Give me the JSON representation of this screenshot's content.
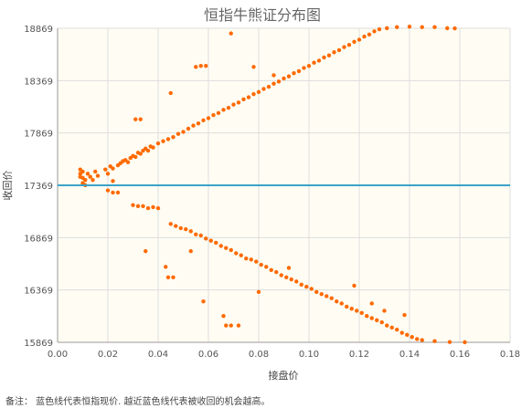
{
  "chart_data": {
    "type": "scatter",
    "title": "恒指牛熊证分布图",
    "xlabel": "接盘价",
    "ylabel": "收回价",
    "xlim": [
      0,
      0.18
    ],
    "ylim": [
      15869,
      18869
    ],
    "xticks": [
      0,
      0.02,
      0.04,
      0.06,
      0.08,
      0.1,
      0.12,
      0.14,
      0.16,
      0.18
    ],
    "xtick_labels": [
      "0.00",
      "0.02",
      "0.04",
      "0.06",
      "0.08",
      "0.10",
      "0.12",
      "0.14",
      "0.16",
      "0.18"
    ],
    "yticks": [
      15869,
      16369,
      16869,
      17369,
      17869,
      18369,
      18869
    ],
    "ytick_labels": [
      "15869",
      "16369",
      "16869",
      "17369",
      "17869",
      "18369",
      "18869"
    ],
    "grid": true,
    "reference_line": {
      "y": 17369,
      "color": "#3aa3c8"
    },
    "series_color": "#ff6a00",
    "plot_background": "#fffdf3",
    "series": [
      {
        "values": [
          [
            0.009,
            17450
          ],
          [
            0.009,
            17480
          ],
          [
            0.009,
            17520
          ],
          [
            0.01,
            17500
          ],
          [
            0.01,
            17440
          ],
          [
            0.01,
            17390
          ],
          [
            0.011,
            17420
          ],
          [
            0.011,
            17370
          ],
          [
            0.012,
            17480
          ],
          [
            0.013,
            17450
          ],
          [
            0.014,
            17420
          ],
          [
            0.015,
            17500
          ],
          [
            0.016,
            17460
          ],
          [
            0.019,
            17520
          ],
          [
            0.02,
            17480
          ],
          [
            0.021,
            17550
          ],
          [
            0.022,
            17530
          ],
          [
            0.022,
            17410
          ],
          [
            0.024,
            17560
          ],
          [
            0.025,
            17580
          ],
          [
            0.026,
            17600
          ],
          [
            0.027,
            17610
          ],
          [
            0.028,
            17590
          ],
          [
            0.029,
            17630
          ],
          [
            0.03,
            17650
          ],
          [
            0.031,
            17640
          ],
          [
            0.032,
            17680
          ],
          [
            0.033,
            17670
          ],
          [
            0.034,
            17700
          ],
          [
            0.035,
            17720
          ],
          [
            0.036,
            17700
          ],
          [
            0.037,
            17740
          ],
          [
            0.038,
            17730
          ],
          [
            0.04,
            17770
          ],
          [
            0.042,
            17790
          ],
          [
            0.044,
            17810
          ],
          [
            0.046,
            17830
          ],
          [
            0.048,
            17860
          ],
          [
            0.05,
            17880
          ],
          [
            0.052,
            17910
          ],
          [
            0.054,
            17940
          ],
          [
            0.056,
            17960
          ],
          [
            0.058,
            17990
          ],
          [
            0.06,
            18010
          ],
          [
            0.062,
            18040
          ],
          [
            0.064,
            18060
          ],
          [
            0.066,
            18090
          ],
          [
            0.068,
            18110
          ],
          [
            0.07,
            18140
          ],
          [
            0.072,
            18160
          ],
          [
            0.074,
            18190
          ],
          [
            0.076,
            18210
          ],
          [
            0.078,
            18240
          ],
          [
            0.08,
            18260
          ],
          [
            0.082,
            18290
          ],
          [
            0.084,
            18310
          ],
          [
            0.086,
            18340
          ],
          [
            0.088,
            18360
          ],
          [
            0.09,
            18390
          ],
          [
            0.092,
            18410
          ],
          [
            0.094,
            18440
          ],
          [
            0.096,
            18460
          ],
          [
            0.098,
            18490
          ],
          [
            0.1,
            18510
          ],
          [
            0.102,
            18540
          ],
          [
            0.104,
            18560
          ],
          [
            0.106,
            18590
          ],
          [
            0.108,
            18610
          ],
          [
            0.11,
            18640
          ],
          [
            0.112,
            18660
          ],
          [
            0.114,
            18690
          ],
          [
            0.116,
            18710
          ],
          [
            0.118,
            18740
          ],
          [
            0.12,
            18760
          ],
          [
            0.122,
            18790
          ],
          [
            0.124,
            18810
          ],
          [
            0.126,
            18840
          ],
          [
            0.128,
            18860
          ],
          [
            0.131,
            18870
          ],
          [
            0.135,
            18880
          ],
          [
            0.14,
            18885
          ],
          [
            0.145,
            18880
          ],
          [
            0.15,
            18880
          ],
          [
            0.155,
            18870
          ],
          [
            0.158,
            18868
          ],
          [
            0.033,
            18000
          ],
          [
            0.031,
            18000
          ],
          [
            0.045,
            18250
          ],
          [
            0.057,
            18510
          ],
          [
            0.059,
            18510
          ],
          [
            0.055,
            18500
          ],
          [
            0.069,
            18820
          ],
          [
            0.078,
            18500
          ],
          [
            0.086,
            18420
          ],
          [
            0.02,
            17320
          ],
          [
            0.022,
            17300
          ],
          [
            0.024,
            17300
          ],
          [
            0.03,
            17180
          ],
          [
            0.032,
            17170
          ],
          [
            0.034,
            17170
          ],
          [
            0.036,
            17150
          ],
          [
            0.038,
            17160
          ],
          [
            0.04,
            17150
          ],
          [
            0.035,
            16740
          ],
          [
            0.045,
            17000
          ],
          [
            0.047,
            16980
          ],
          [
            0.049,
            16960
          ],
          [
            0.051,
            16950
          ],
          [
            0.053,
            16930
          ],
          [
            0.055,
            16900
          ],
          [
            0.057,
            16890
          ],
          [
            0.059,
            16860
          ],
          [
            0.061,
            16840
          ],
          [
            0.063,
            16820
          ],
          [
            0.065,
            16790
          ],
          [
            0.067,
            16770
          ],
          [
            0.069,
            16750
          ],
          [
            0.071,
            16720
          ],
          [
            0.073,
            16700
          ],
          [
            0.075,
            16670
          ],
          [
            0.077,
            16660
          ],
          [
            0.079,
            16640
          ],
          [
            0.081,
            16610
          ],
          [
            0.083,
            16590
          ],
          [
            0.085,
            16560
          ],
          [
            0.087,
            16540
          ],
          [
            0.089,
            16510
          ],
          [
            0.091,
            16490
          ],
          [
            0.093,
            16470
          ],
          [
            0.095,
            16450
          ],
          [
            0.097,
            16420
          ],
          [
            0.099,
            16400
          ],
          [
            0.101,
            16380
          ],
          [
            0.103,
            16350
          ],
          [
            0.105,
            16330
          ],
          [
            0.107,
            16310
          ],
          [
            0.109,
            16290
          ],
          [
            0.111,
            16260
          ],
          [
            0.113,
            16240
          ],
          [
            0.115,
            16210
          ],
          [
            0.117,
            16190
          ],
          [
            0.119,
            16170
          ],
          [
            0.121,
            16150
          ],
          [
            0.123,
            16120
          ],
          [
            0.125,
            16100
          ],
          [
            0.127,
            16080
          ],
          [
            0.129,
            16060
          ],
          [
            0.131,
            16030
          ],
          [
            0.133,
            16010
          ],
          [
            0.135,
            15990
          ],
          [
            0.137,
            15960
          ],
          [
            0.139,
            15940
          ],
          [
            0.141,
            15920
          ],
          [
            0.143,
            15900
          ],
          [
            0.145,
            15890
          ],
          [
            0.15,
            15880
          ],
          [
            0.156,
            15872
          ],
          [
            0.162,
            15870
          ],
          [
            0.043,
            16590
          ],
          [
            0.044,
            16490
          ],
          [
            0.046,
            16490
          ],
          [
            0.053,
            16740
          ],
          [
            0.058,
            16260
          ],
          [
            0.066,
            16120
          ],
          [
            0.067,
            16030
          ],
          [
            0.069,
            16030
          ],
          [
            0.072,
            16030
          ],
          [
            0.08,
            16350
          ],
          [
            0.092,
            16580
          ],
          [
            0.118,
            16410
          ],
          [
            0.125,
            16240
          ],
          [
            0.13,
            16170
          ],
          [
            0.138,
            16130
          ]
        ]
      }
    ]
  },
  "note": "备注：  蓝色线代表恒指现价. 越近蓝色线代表被收回的机会越高。"
}
